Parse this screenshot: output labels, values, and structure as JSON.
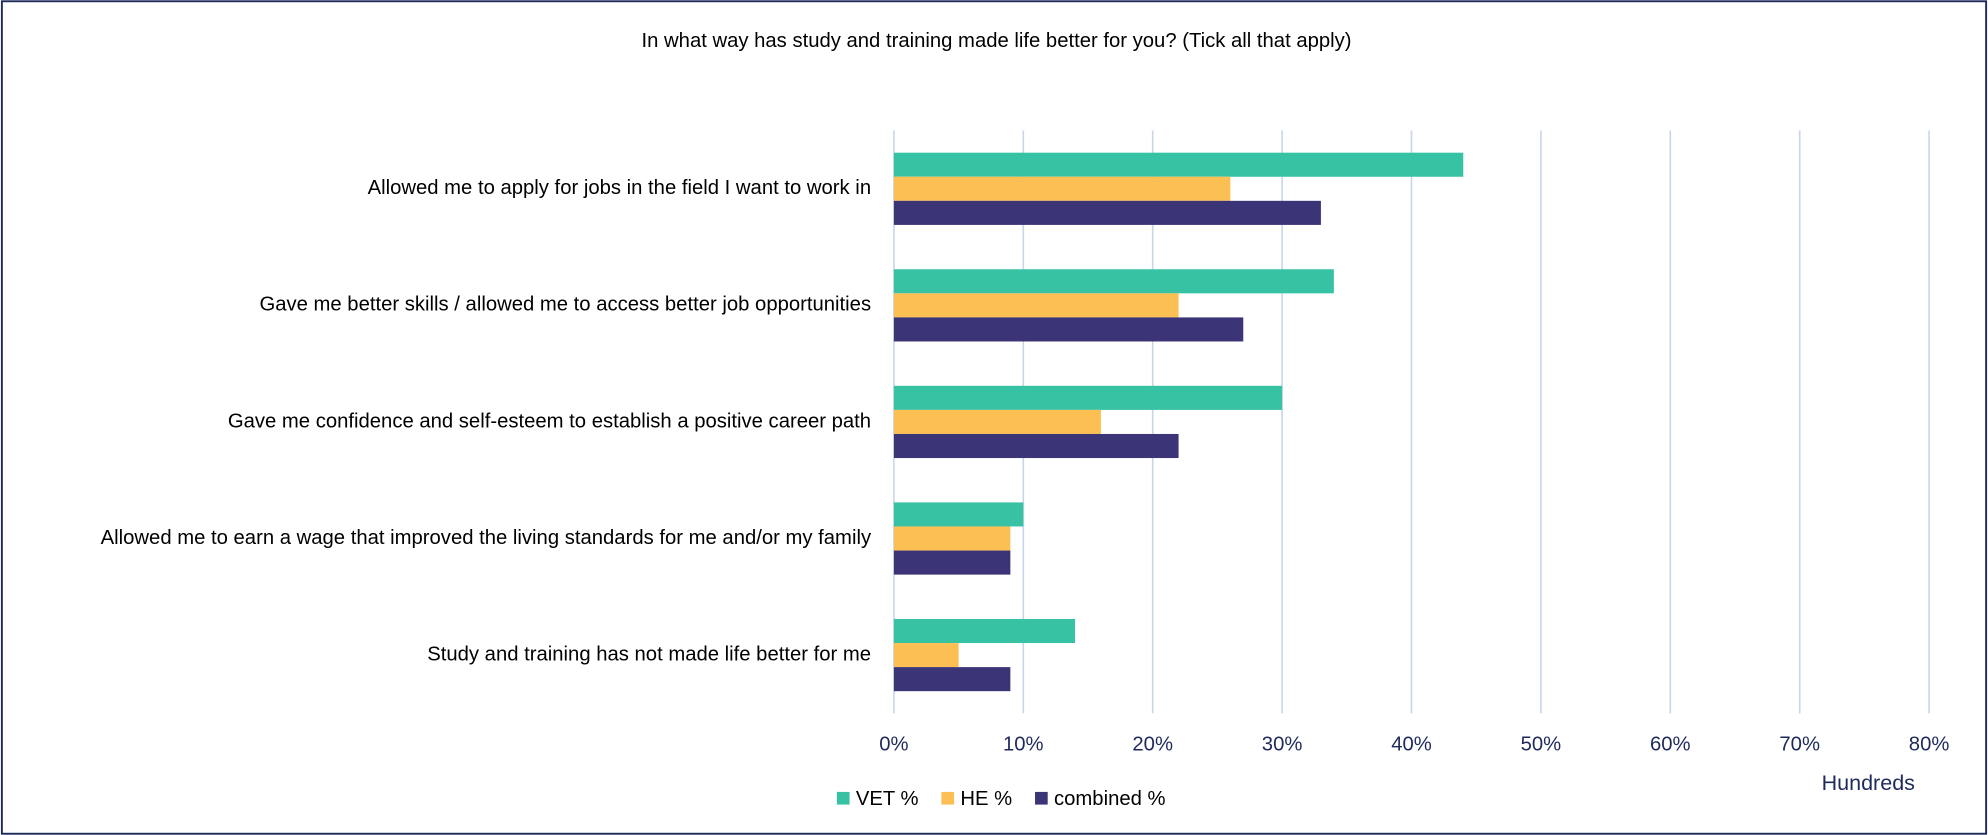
{
  "chart_data": {
    "type": "barh",
    "title": "In what way has study and training made life better for you? (Tick all that apply)",
    "categories": [
      "Allowed me to apply for jobs in the field I want to work in",
      "Gave me better skills / allowed me to access better job opportunities",
      "Gave me confidence and self-esteem to establish a positive career path",
      "Allowed me to earn a wage that improved the living standards for me and/or my family",
      "Study and training has not made life better for me"
    ],
    "series": [
      {
        "name": "VET %",
        "color": "#36c2a3",
        "values": [
          44,
          34,
          30,
          10,
          14
        ]
      },
      {
        "name": "HE %",
        "color": "#fcbf53",
        "values": [
          26,
          22,
          16,
          9,
          5
        ]
      },
      {
        "name": "combined %",
        "color": "#3b3577",
        "values": [
          33,
          27,
          22,
          9,
          9
        ]
      }
    ],
    "xlim": [
      0,
      80
    ],
    "xticks": [
      {
        "value": 0,
        "label": "0%"
      },
      {
        "value": 10,
        "label": "10%"
      },
      {
        "value": 20,
        "label": "20%"
      },
      {
        "value": 30,
        "label": "30%"
      },
      {
        "value": 40,
        "label": "40%"
      },
      {
        "value": 50,
        "label": "50%"
      },
      {
        "value": 60,
        "label": "60%"
      },
      {
        "value": 70,
        "label": "70%"
      },
      {
        "value": 80,
        "label": "80%"
      }
    ],
    "axis_unit_label": "Hundreds",
    "grid": true,
    "legend": "bottom"
  }
}
